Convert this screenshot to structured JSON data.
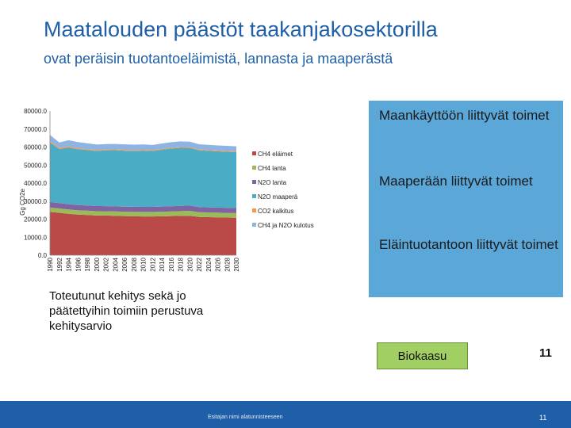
{
  "slide": {
    "title": "Maatalouden päästöt taakanjakosektorilla",
    "subtitle": "ovat peräisin tuotantoeläimistä, lannasta ja maaperästä",
    "panel_items": [
      "Maankäyttöön liittyvät toimet",
      "Maaperään liittyvät toimet",
      "Eläintuotantoon liittyvät toimet"
    ],
    "note": "Toteutunut kehitys sekä jo päätettyihin toimiin perustuva kehitysarvio",
    "biogas_label": "Biokaasu",
    "slide_number_top": "11",
    "footer": "Esitajan nimi alatunnisteeseen",
    "slide_number_bottom": "11"
  },
  "colors": {
    "title": "#1f5fa8",
    "panel": "#5aa7d8",
    "biogas_box": "#a2cf63",
    "bottom_bar": "#1f5fa8"
  },
  "chart_data": {
    "type": "area",
    "stacked": true,
    "ylabel": "Gg CO2e",
    "ylim": [
      0,
      80000
    ],
    "yticks": [
      "0.0",
      "10000.0",
      "20000.0",
      "30000.0",
      "40000.0",
      "50000.0",
      "60000.0",
      "70000.0",
      "80000.0"
    ],
    "x": [
      1990,
      1992,
      1994,
      1996,
      1998,
      2000,
      2002,
      2004,
      2006,
      2008,
      2010,
      2012,
      2014,
      2016,
      2018,
      2020,
      2022,
      2024,
      2026,
      2028,
      2030
    ],
    "series": [
      {
        "name": "CH4 eläimet",
        "color": "#b94a48",
        "values": [
          24000,
          23500,
          23000,
          22500,
          22300,
          22000,
          22000,
          21800,
          21700,
          21600,
          21500,
          21500,
          21600,
          21700,
          21800,
          21900,
          21200,
          21100,
          21000,
          20900,
          20800
        ]
      },
      {
        "name": "CH4 lanta",
        "color": "#9bbb59",
        "values": [
          2500,
          2450,
          2400,
          2400,
          2400,
          2400,
          2400,
          2450,
          2450,
          2450,
          2500,
          2500,
          2550,
          2600,
          2650,
          2700,
          2650,
          2600,
          2600,
          2550,
          2550
        ]
      },
      {
        "name": "N2O lanta",
        "color": "#8064a2",
        "values": [
          3000,
          2950,
          2900,
          2900,
          2850,
          2850,
          2800,
          2800,
          2800,
          2800,
          2800,
          2800,
          2850,
          2850,
          2900,
          2900,
          2850,
          2850,
          2800,
          2800,
          2800
        ]
      },
      {
        "name": "N2O maaperä",
        "color": "#4bacc6",
        "values": [
          33000,
          30000,
          31500,
          31000,
          30800,
          30500,
          31000,
          31200,
          31000,
          31000,
          31200,
          31000,
          31500,
          32000,
          32200,
          32000,
          31500,
          31300,
          31200,
          31100,
          31000
        ]
      },
      {
        "name": "CO2 kalkitus",
        "color": "#f79646",
        "values": [
          700,
          650,
          600,
          550,
          500,
          500,
          450,
          450,
          450,
          450,
          450,
          450,
          450,
          450,
          450,
          450,
          450,
          450,
          450,
          450,
          450
        ]
      },
      {
        "name": "CH4 ja N2O kulotus",
        "color": "#8eb4e3",
        "values": [
          3500,
          3000,
          3400,
          3400,
          3200,
          3100,
          3000,
          3000,
          3100,
          3000,
          3000,
          2900,
          3000,
          3100,
          3100,
          3000,
          2900,
          2900,
          2850,
          2850,
          2800
        ]
      }
    ]
  }
}
